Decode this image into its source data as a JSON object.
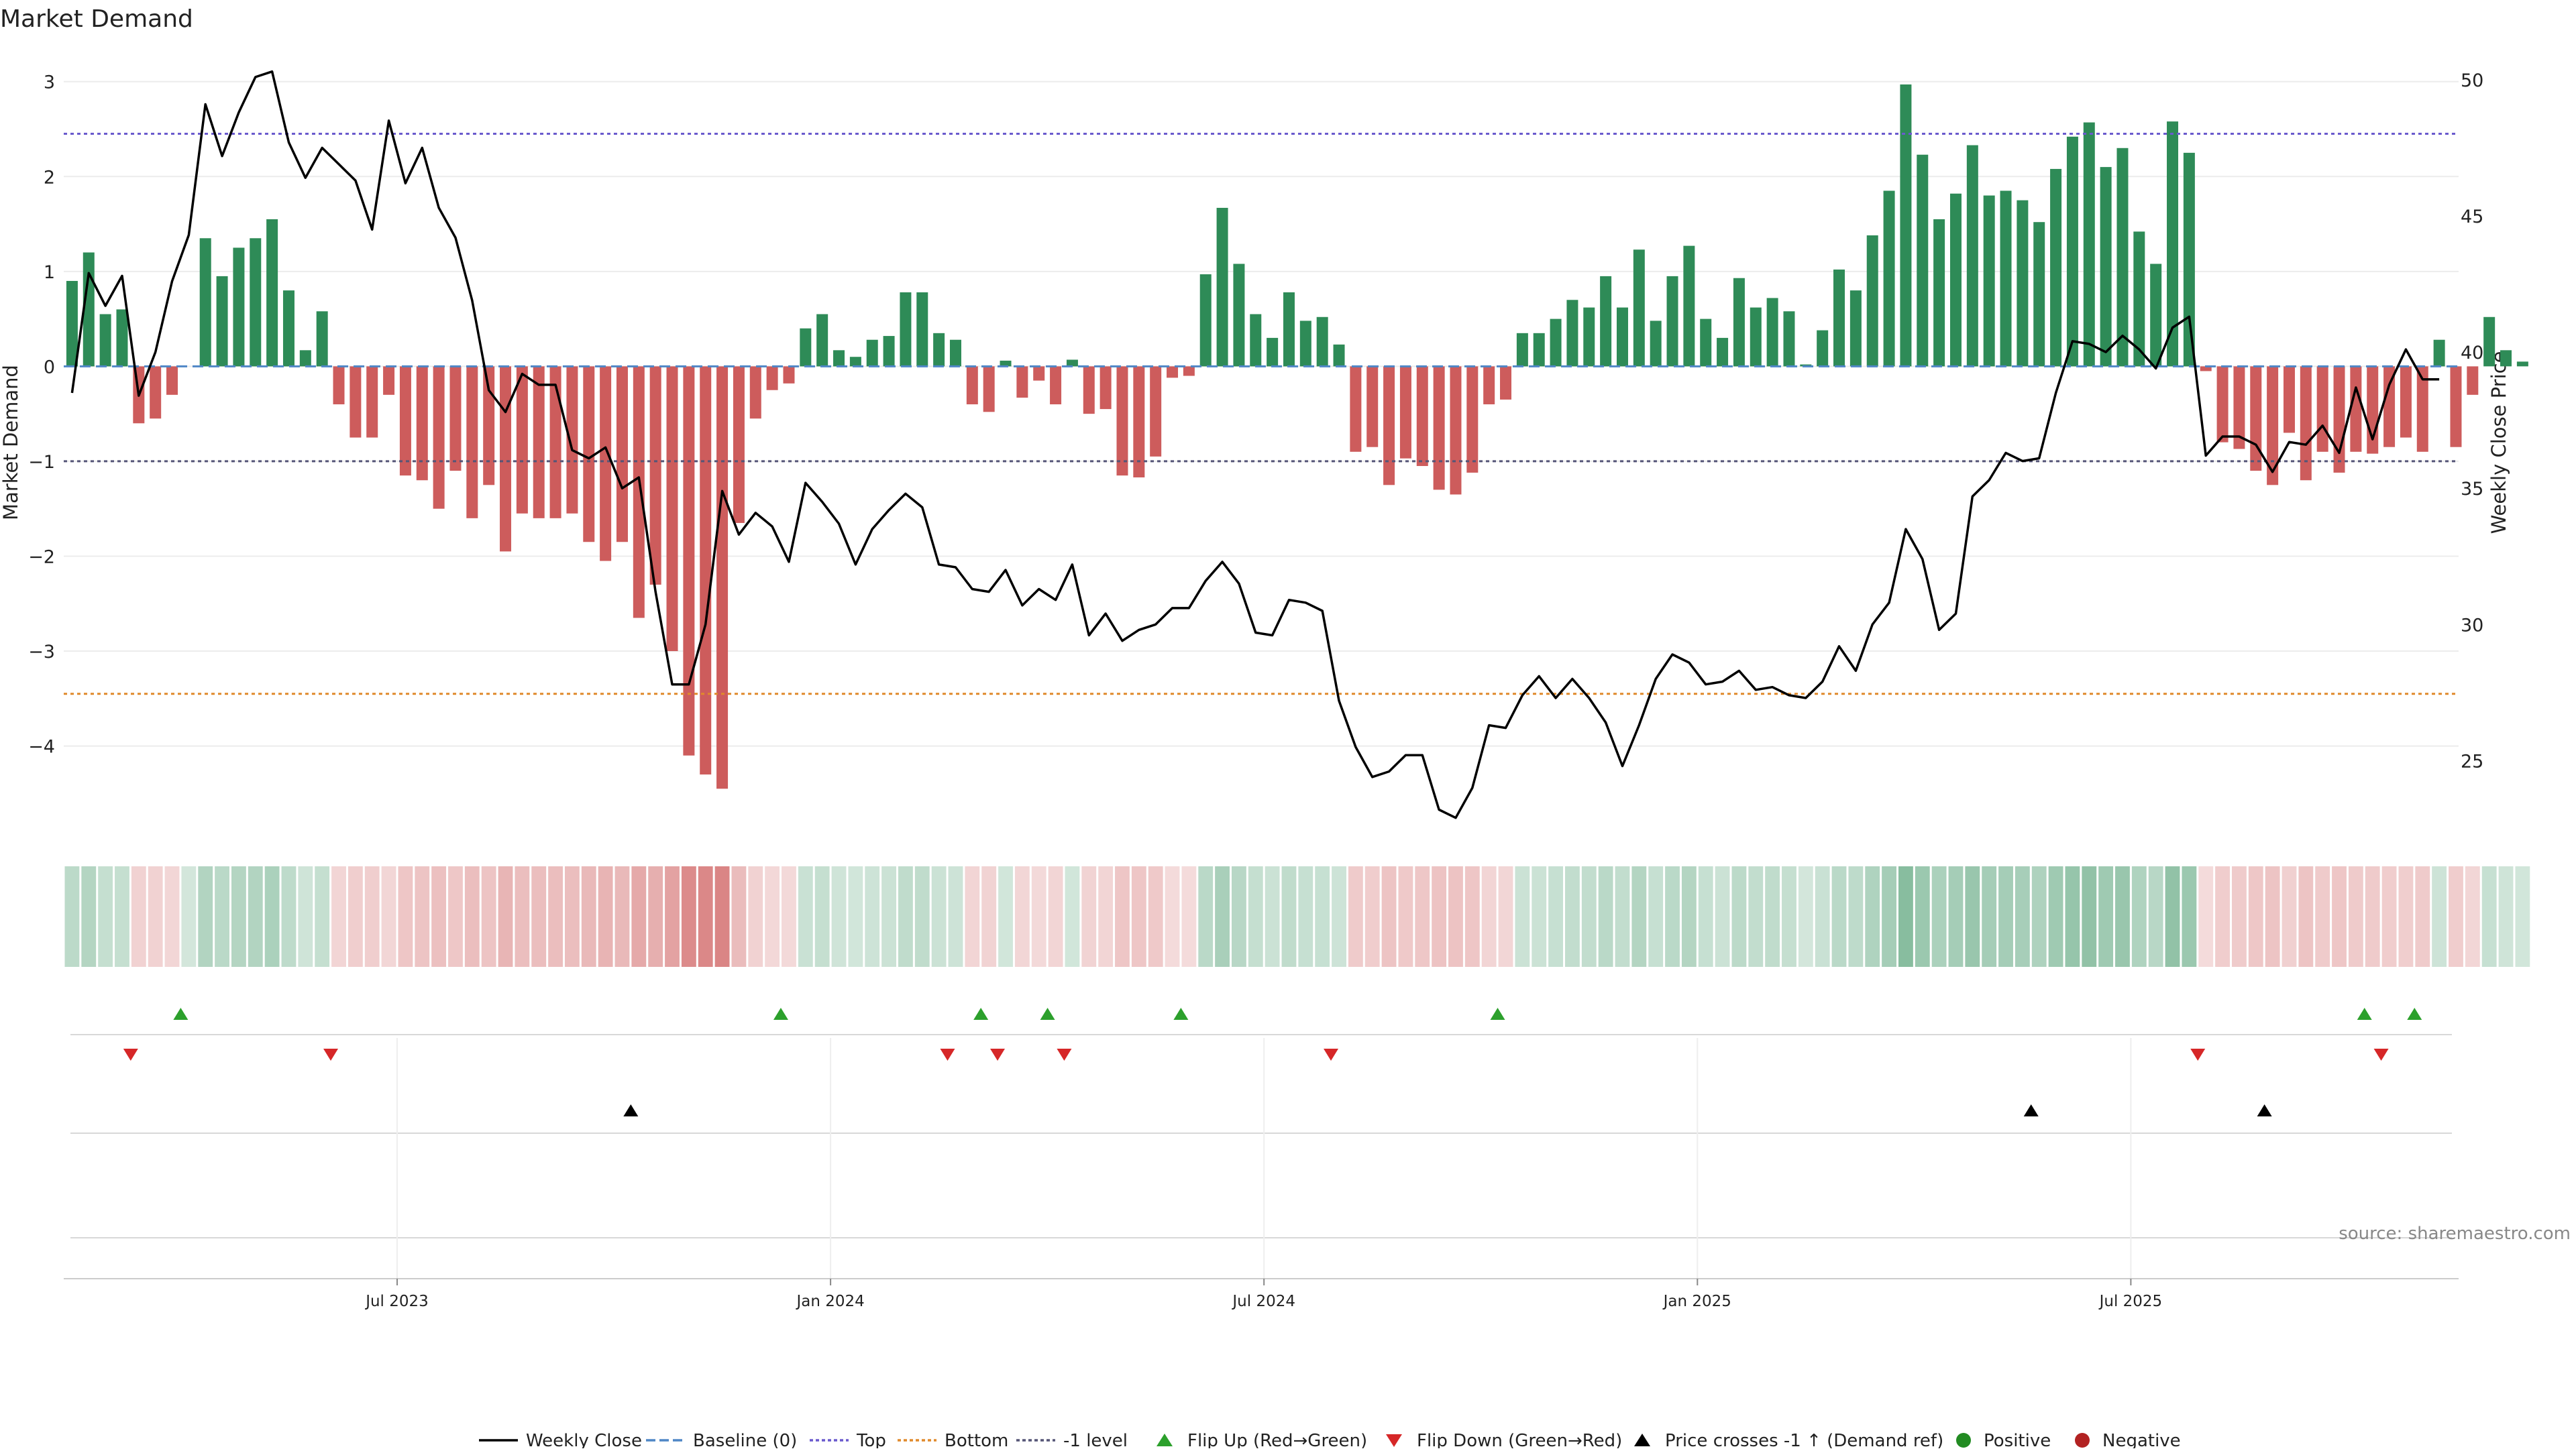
{
  "chart_data": {
    "type": "bar",
    "title": "Market Demand",
    "ylabel_left": "Market Demand",
    "ylabel_right": "Weekly Close Price",
    "yticks_left": [
      3,
      2,
      1,
      0,
      -1,
      -2,
      -3,
      -4
    ],
    "ytick_labels_left": [
      "3",
      "2",
      "1",
      "0",
      "−1",
      "−2",
      "−3",
      "−4"
    ],
    "ylim_left": [
      -4.9,
      3.45
    ],
    "yticks_right": [
      50,
      45,
      40,
      35,
      30,
      25
    ],
    "ylim_right": [
      22.4,
      51.5
    ],
    "xtick_labels": [
      "Jul 2023",
      "Jan 2024",
      "Jul 2024",
      "Jan 2025",
      "Jul 2025"
    ],
    "xtick_weeks": [
      20,
      46,
      72,
      98,
      124
    ],
    "reference_lines": {
      "top": 2.45,
      "bottom": -3.45,
      "minus1": -1,
      "baseline": 0
    },
    "colors": {
      "positive": "#2e8b57",
      "negative": "#cd5c5c",
      "price": "#000000",
      "top": "#6a5acd",
      "bottom": "#e08a2c",
      "minus1": "#555577",
      "baseline": "#4f86c6",
      "flip_up": "#2ca02c",
      "flip_down": "#d62728",
      "cross": "#000000"
    },
    "demand": [
      0.9,
      1.2,
      0.55,
      0.6,
      -0.6,
      -0.55,
      -0.3,
      0,
      1.35,
      0.95,
      1.25,
      1.35,
      1.55,
      0.8,
      0.17,
      0.58,
      -0.4,
      -0.75,
      -0.75,
      -0.3,
      -1.15,
      -1.2,
      -1.5,
      -1.1,
      -1.6,
      -1.25,
      -1.95,
      -1.55,
      -1.6,
      -1.6,
      -1.55,
      -1.85,
      -2.05,
      -1.85,
      -2.65,
      -2.3,
      -3,
      -4.1,
      -4.3,
      -4.45,
      -1.65,
      -0.55,
      -0.25,
      -0.18,
      0.4,
      0.55,
      0.17,
      0.1,
      0.28,
      0.32,
      0.78,
      0.78,
      0.35,
      0.28,
      -0.4,
      -0.48,
      0.06,
      -0.33,
      -0.15,
      -0.4,
      0.07,
      -0.5,
      -0.45,
      -1.15,
      -1.17,
      -0.95,
      -0.12,
      -0.1,
      0.97,
      1.67,
      1.08,
      0.55,
      0.3,
      0.78,
      0.48,
      0.52,
      0.23,
      -0.9,
      -0.85,
      -1.25,
      -0.97,
      -1.05,
      -1.3,
      -1.35,
      -1.12,
      -0.4,
      -0.35,
      0.35,
      0.35,
      0.5,
      0.7,
      0.62,
      0.95,
      0.62,
      1.23,
      0.48,
      0.95,
      1.27,
      0.5,
      0.3,
      0.93,
      0.62,
      0.72,
      0.58,
      0.02,
      0.38,
      1.02,
      0.8,
      1.38,
      1.85,
      2.97,
      2.23,
      1.55,
      1.82,
      2.33,
      1.8,
      1.85,
      1.75,
      1.52,
      2.08,
      2.42,
      2.57,
      2.1,
      2.3,
      1.42,
      1.08,
      2.58,
      2.25,
      -0.05,
      -0.8,
      -0.87,
      -1.1,
      -1.25,
      -0.7,
      -1.2,
      -0.9,
      -1.12,
      -0.9,
      -0.92,
      -0.85,
      -0.75,
      -0.9,
      0.28,
      -0.85,
      -0.3,
      0.52,
      0.17,
      0.05
    ],
    "price": [
      38.5,
      42.9,
      41.7,
      42.8,
      38.4,
      40,
      42.6,
      44.3,
      49.1,
      47.2,
      48.8,
      50.1,
      50.3,
      47.7,
      46.4,
      47.5,
      46.9,
      46.3,
      44.5,
      48.5,
      46.2,
      47.5,
      45.3,
      44.2,
      41.9,
      38.6,
      37.8,
      39.2,
      38.8,
      38.8,
      36.4,
      36.1,
      36.5,
      35,
      35.4,
      31.2,
      27.8,
      27.8,
      30,
      34.9,
      33.3,
      34.1,
      33.6,
      32.3,
      35.2,
      34.5,
      33.7,
      32.2,
      33.5,
      34.2,
      34.8,
      34.3,
      32.2,
      32.1,
      31.3,
      31.2,
      32,
      30.7,
      31.3,
      30.9,
      32.2,
      29.6,
      30.4,
      29.4,
      29.8,
      30,
      30.6,
      30.6,
      31.6,
      32.3,
      31.5,
      29.7,
      29.6,
      30.9,
      30.8,
      30.5,
      27.2,
      25.5,
      24.4,
      24.6,
      25.2,
      25.2,
      23.2,
      22.9,
      24,
      26.3,
      26.2,
      27.4,
      28.1,
      27.3,
      28,
      27.3,
      26.4,
      24.8,
      26.3,
      28,
      28.9,
      28.6,
      27.8,
      27.9,
      28.3,
      27.6,
      27.7,
      27.4,
      27.3,
      27.9,
      29.2,
      28.3,
      30,
      30.8,
      33.5,
      32.4,
      29.8,
      30.4,
      34.7,
      35.3,
      36.3,
      36,
      36.1,
      38.5,
      40.4,
      40.3,
      40,
      40.6,
      40.1,
      39.4,
      40.9,
      41.3,
      36.2,
      36.9,
      36.9,
      36.6,
      35.6,
      36.7,
      36.6,
      37.3,
      36.3,
      38.7,
      36.8,
      38.8,
      40.1,
      39,
      39
    ],
    "flip_up_weeks": [
      7,
      43,
      55,
      59,
      67,
      86,
      138,
      141
    ],
    "flip_down_weeks": [
      4,
      16,
      53,
      56,
      60,
      76,
      128,
      139
    ],
    "price_cross_weeks": [
      34,
      118,
      132
    ],
    "legend": [
      "Weekly Close",
      "Baseline (0)",
      "Top",
      "Bottom",
      "-1 level",
      "Flip Up (Red→Green)",
      "Flip Down (Green→Red)",
      "Price crosses -1 ↑ (Demand ref)",
      "Positive",
      "Negative"
    ]
  },
  "source_text": "source: sharemaestro.com"
}
